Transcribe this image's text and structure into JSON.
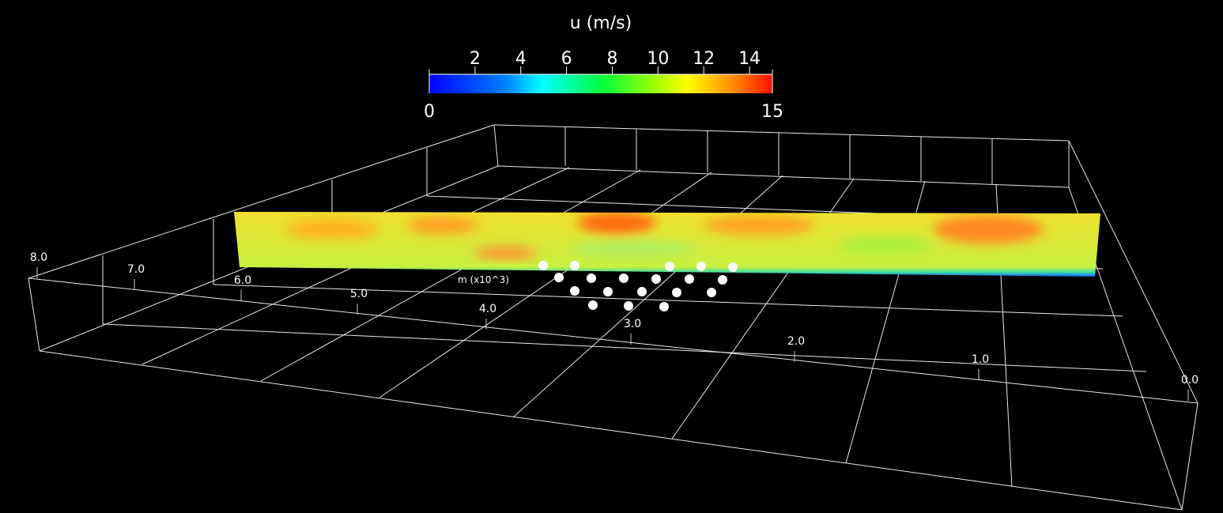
{
  "colorbar": {
    "title": "u (m/s)",
    "range": [
      0,
      15
    ],
    "ticks": [
      2,
      4,
      6,
      8,
      10,
      12,
      14
    ]
  },
  "axis": {
    "title": "m (x10^3)",
    "ticks": [
      {
        "value": 8,
        "label": "8.0"
      },
      {
        "value": 7,
        "label": "7.0"
      },
      {
        "value": 6,
        "label": "6.0"
      },
      {
        "value": 5,
        "label": "5.0"
      },
      {
        "value": 4,
        "label": "4.0"
      },
      {
        "value": 3,
        "label": "3.0"
      },
      {
        "value": 2,
        "label": "2.0"
      },
      {
        "value": 1,
        "label": "1.0"
      },
      {
        "value": 0,
        "label": "0.0"
      }
    ]
  }
}
